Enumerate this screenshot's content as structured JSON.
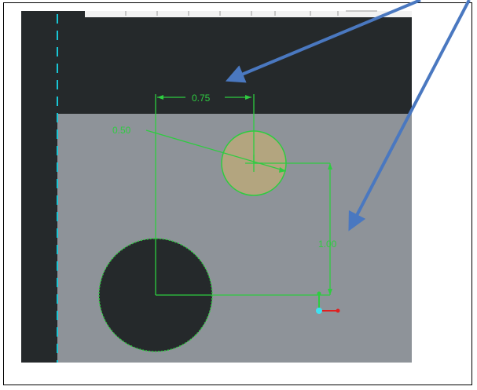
{
  "sketch": {
    "dimension_horizontal": "0.75",
    "dimension_diameter": "0.50",
    "dimension_vertical": "1.00"
  },
  "colors": {
    "canvas_dark": "#25292b",
    "canvas_gray": "#8e9399",
    "sketch_green": "#2ecc40",
    "small_circle_fill": "#b3a57f",
    "centerline_cyan": "#19c6d6",
    "arrow_blue": "#4a78c0"
  },
  "icons": {
    "triad": "coordinate-triad-icon",
    "arrow": "callout-arrow"
  }
}
